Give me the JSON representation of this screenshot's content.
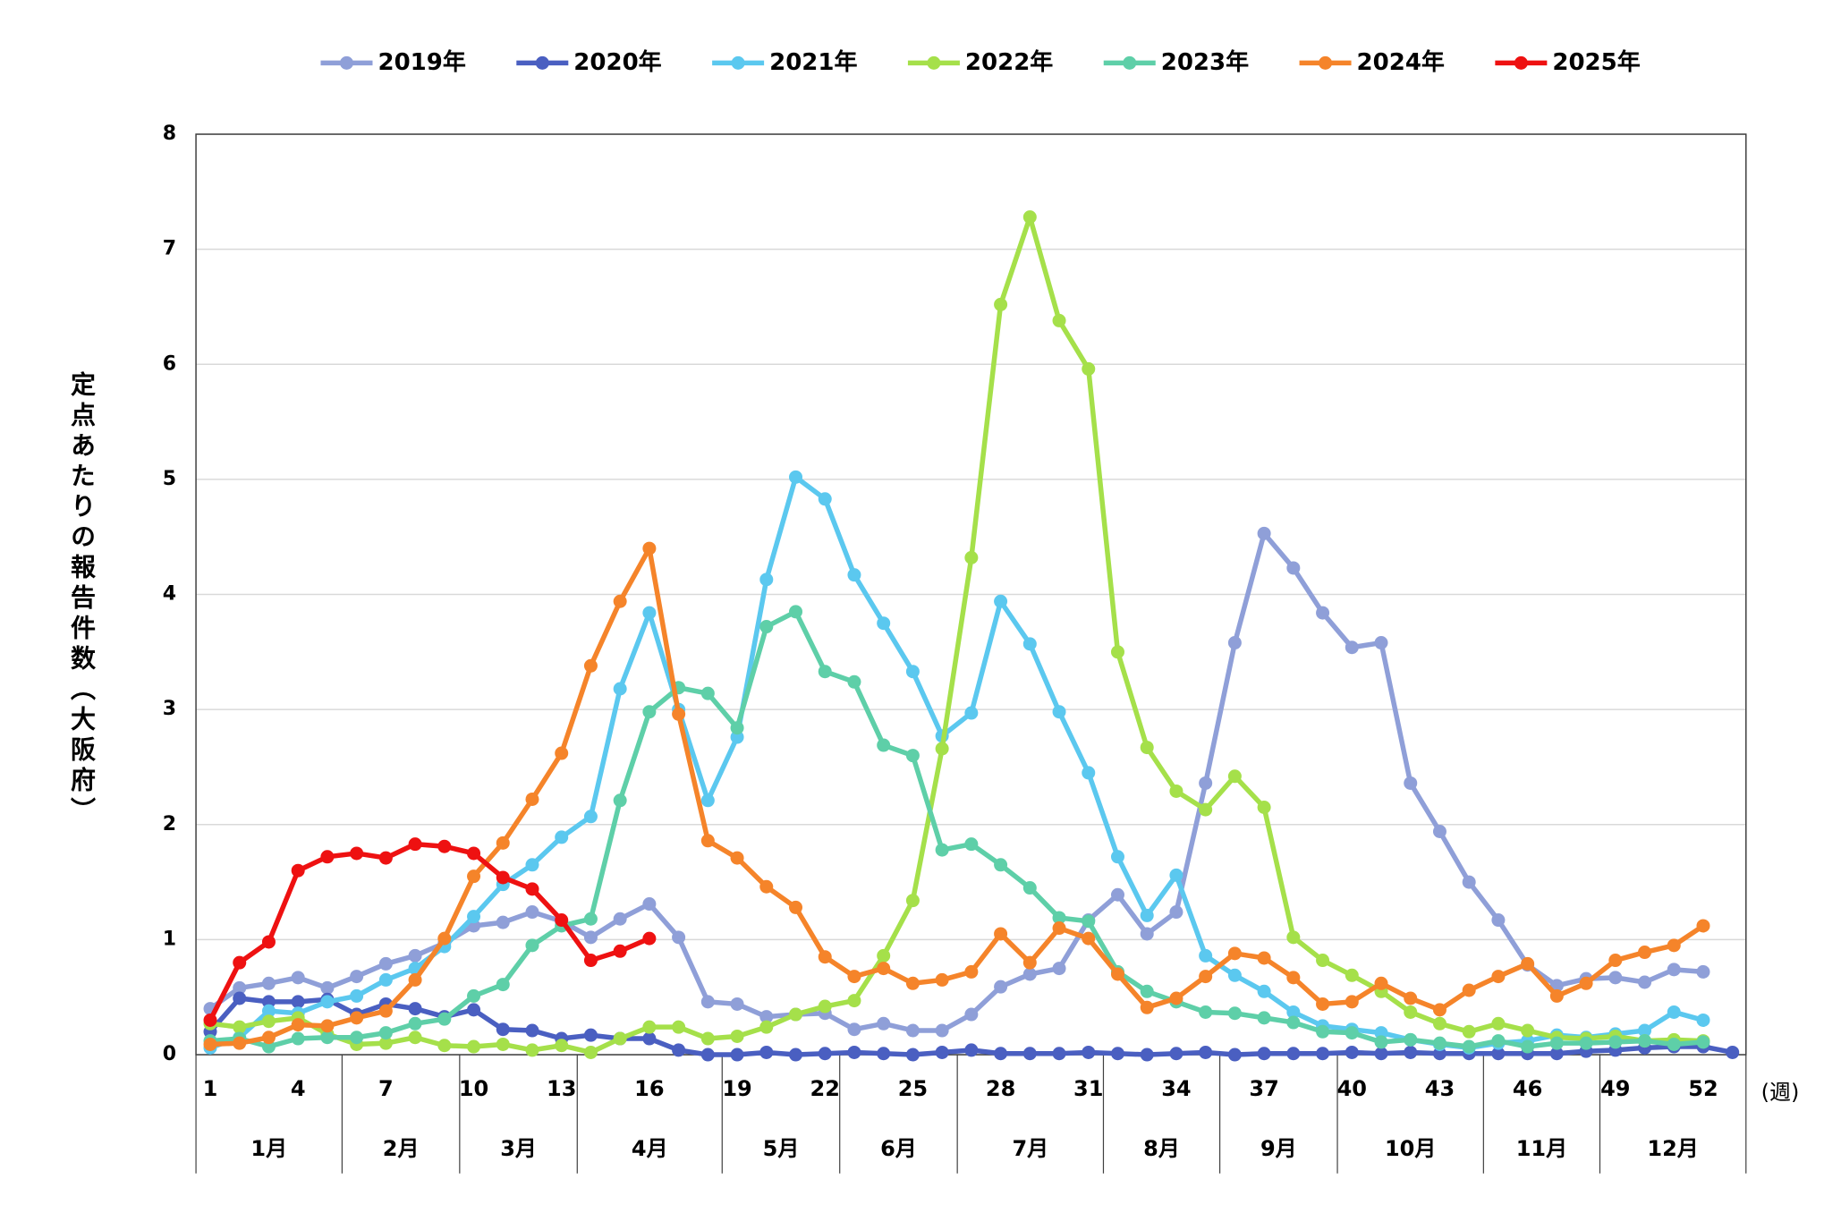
{
  "chart_data": {
    "type": "line",
    "ylabel": "定点あたりの報告件数（大阪府）",
    "xlabel": "(週)",
    "x": [
      1,
      2,
      3,
      4,
      5,
      6,
      7,
      8,
      9,
      10,
      11,
      12,
      13,
      14,
      15,
      16,
      17,
      18,
      19,
      20,
      21,
      22,
      23,
      24,
      25,
      26,
      27,
      28,
      29,
      30,
      31,
      32,
      33,
      34,
      35,
      36,
      37,
      38,
      39,
      40,
      41,
      42,
      43,
      44,
      45,
      46,
      47,
      48,
      49,
      50,
      51,
      52,
      53
    ],
    "xlim": [
      0.5,
      53.5
    ],
    "xticks": [
      1,
      4,
      7,
      10,
      13,
      16,
      19,
      22,
      25,
      28,
      31,
      34,
      37,
      40,
      43,
      46,
      49,
      52
    ],
    "months": [
      "1月",
      "2月",
      "3月",
      "4月",
      "5月",
      "6月",
      "7月",
      "8月",
      "9月",
      "10月",
      "11月",
      "12月"
    ],
    "ylim": [
      0,
      8
    ],
    "yticks": [
      0,
      1,
      2,
      3,
      4,
      5,
      6,
      7,
      8
    ],
    "grid": true,
    "legend": "top",
    "series": [
      {
        "name": "2019年",
        "color": "#8f9fd8",
        "values": [
          0.4,
          0.58,
          0.62,
          0.67,
          0.58,
          0.68,
          0.79,
          0.86,
          0.97,
          1.12,
          1.15,
          1.24,
          1.16,
          1.02,
          1.18,
          1.31,
          1.02,
          0.46,
          0.44,
          0.33,
          0.35,
          0.36,
          0.22,
          0.27,
          0.21,
          0.21,
          0.35,
          0.59,
          0.7,
          0.75,
          1.17,
          1.39,
          1.05,
          1.24,
          2.36,
          3.58,
          4.53,
          4.23,
          3.84,
          3.54,
          3.58,
          2.36,
          1.94,
          1.5,
          1.17,
          0.78,
          0.6,
          0.66,
          0.67,
          0.63,
          0.74,
          0.72,
          null
        ]
      },
      {
        "name": "2020年",
        "color": "#4a5fc1",
        "values": [
          0.2,
          0.49,
          0.46,
          0.46,
          0.48,
          0.35,
          0.44,
          0.4,
          0.33,
          0.39,
          0.22,
          0.21,
          0.14,
          0.17,
          0.14,
          0.14,
          0.04,
          0.0,
          0.0,
          0.02,
          0.0,
          0.01,
          0.02,
          0.01,
          0.0,
          0.02,
          0.04,
          0.01,
          0.01,
          0.01,
          0.02,
          0.01,
          0.0,
          0.01,
          0.02,
          0.0,
          0.01,
          0.01,
          0.01,
          0.02,
          0.01,
          0.02,
          0.01,
          0.01,
          0.01,
          0.01,
          0.01,
          0.03,
          0.04,
          0.06,
          0.07,
          0.07,
          0.02
        ]
      },
      {
        "name": "2021年",
        "color": "#5bc8ef",
        "values": [
          0.06,
          0.15,
          0.38,
          0.36,
          0.46,
          0.51,
          0.65,
          0.75,
          0.94,
          1.2,
          1.48,
          1.65,
          1.89,
          2.07,
          3.18,
          3.84,
          3.0,
          2.21,
          2.76,
          4.13,
          5.02,
          4.83,
          4.17,
          3.75,
          3.33,
          2.77,
          2.97,
          3.94,
          3.57,
          2.98,
          2.45,
          1.72,
          1.21,
          1.56,
          0.86,
          0.69,
          0.55,
          0.37,
          0.25,
          0.22,
          0.19,
          0.13,
          0.09,
          0.06,
          0.1,
          0.12,
          0.17,
          0.15,
          0.18,
          0.21,
          0.37,
          0.3,
          null
        ]
      },
      {
        "name": "2022年",
        "color": "#a5e04a",
        "values": [
          0.27,
          0.24,
          0.29,
          0.32,
          0.18,
          0.09,
          0.1,
          0.15,
          0.08,
          0.07,
          0.09,
          0.04,
          0.08,
          0.02,
          0.14,
          0.24,
          0.24,
          0.14,
          0.16,
          0.24,
          0.35,
          0.42,
          0.47,
          0.86,
          1.34,
          2.66,
          4.32,
          6.52,
          7.28,
          6.38,
          5.96,
          3.5,
          2.67,
          2.29,
          2.13,
          2.42,
          2.15,
          1.02,
          0.82,
          0.69,
          0.55,
          0.37,
          0.27,
          0.2,
          0.27,
          0.21,
          0.15,
          0.14,
          0.16,
          0.12,
          0.13,
          0.12,
          null
        ]
      },
      {
        "name": "2023年",
        "color": "#5ecfa8",
        "values": [
          0.12,
          0.14,
          0.07,
          0.14,
          0.15,
          0.15,
          0.19,
          0.27,
          0.31,
          0.51,
          0.61,
          0.95,
          1.12,
          1.18,
          2.21,
          2.98,
          3.19,
          3.14,
          2.84,
          3.72,
          3.85,
          3.33,
          3.24,
          2.69,
          2.6,
          1.78,
          1.83,
          1.65,
          1.45,
          1.19,
          1.16,
          0.72,
          0.55,
          0.46,
          0.37,
          0.36,
          0.32,
          0.28,
          0.2,
          0.19,
          0.11,
          0.13,
          0.1,
          0.07,
          0.12,
          0.07,
          0.1,
          0.1,
          0.11,
          0.12,
          0.09,
          0.11,
          null
        ]
      },
      {
        "name": "2024年",
        "color": "#f5842a",
        "values": [
          0.09,
          0.1,
          0.15,
          0.26,
          0.25,
          0.32,
          0.38,
          0.65,
          1.01,
          1.55,
          1.84,
          2.22,
          2.62,
          3.38,
          3.94,
          4.4,
          2.96,
          1.86,
          1.71,
          1.46,
          1.28,
          0.85,
          0.68,
          0.75,
          0.62,
          0.65,
          0.72,
          1.05,
          0.8,
          1.1,
          1.01,
          0.7,
          0.41,
          0.49,
          0.68,
          0.88,
          0.84,
          0.67,
          0.44,
          0.46,
          0.62,
          0.49,
          0.39,
          0.56,
          0.68,
          0.79,
          0.51,
          0.62,
          0.82,
          0.89,
          0.95,
          1.12,
          null
        ]
      },
      {
        "name": "2025年",
        "color": "#ee1111",
        "values": [
          0.3,
          0.8,
          0.98,
          1.6,
          1.72,
          1.75,
          1.71,
          1.83,
          1.81,
          1.75,
          1.54,
          1.44,
          1.17,
          0.82,
          0.9,
          1.01,
          null,
          null,
          null,
          null,
          null,
          null,
          null,
          null,
          null,
          null,
          null,
          null,
          null,
          null,
          null,
          null,
          null,
          null,
          null,
          null,
          null,
          null,
          null,
          null,
          null,
          null,
          null,
          null,
          null,
          null,
          null,
          null,
          null,
          null,
          null,
          null,
          null
        ]
      }
    ]
  }
}
